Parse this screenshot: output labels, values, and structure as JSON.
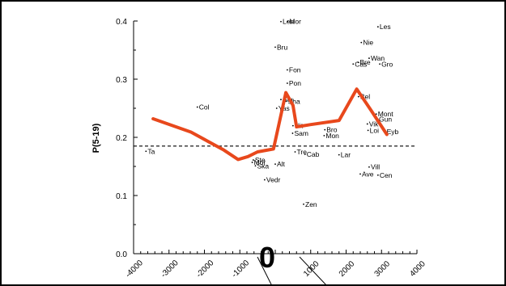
{
  "chart_data": {
    "type": "scatter",
    "title": "",
    "xlabel": "",
    "ylabel": "P(5-19)",
    "xlim": [
      -4000,
      4000
    ],
    "ylim": [
      0.0,
      0.4
    ],
    "x_ticks": [
      "-4000",
      "-3000",
      "-2000",
      "-1000",
      "0",
      "1000",
      "2000",
      "3000",
      "4000"
    ],
    "y_ticks": [
      "0.0",
      "0.1",
      "0.2",
      "0.3",
      "0.4"
    ],
    "zero_label": "0",
    "grid": false,
    "reference_line": {
      "style": "dashed",
      "y": 0.185
    },
    "points": [
      {
        "label": "Ta",
        "x": -3650,
        "y": 0.176
      },
      {
        "label": "Col",
        "x": -2200,
        "y": 0.252
      },
      {
        "label": "Mor",
        "x": -650,
        "y": 0.157
      },
      {
        "label": "Ste",
        "x": -620,
        "y": 0.161
      },
      {
        "label": "Ska",
        "x": -560,
        "y": 0.151
      },
      {
        "label": "Vedr",
        "x": -300,
        "y": 0.127
      },
      {
        "label": "Alt",
        "x": 0,
        "y": 0.154
      },
      {
        "label": "Bru",
        "x": 0,
        "y": 0.355
      },
      {
        "label": "Len",
        "x": 160,
        "y": 0.399
      },
      {
        "label": "Mor",
        "x": 350,
        "y": 0.399
      },
      {
        "label": "Fon",
        "x": 340,
        "y": 0.316
      },
      {
        "label": "Pon",
        "x": 340,
        "y": 0.293
      },
      {
        "label": "Stu",
        "x": 160,
        "y": 0.265
      },
      {
        "label": "Sha",
        "x": 310,
        "y": 0.262
      },
      {
        "label": "Yas",
        "x": 40,
        "y": 0.25
      },
      {
        "label": "Nit",
        "x": 500,
        "y": 0.22
      },
      {
        "label": "Sam",
        "x": 490,
        "y": 0.207
      },
      {
        "label": "Tre",
        "x": 560,
        "y": 0.175
      },
      {
        "label": "Cab",
        "x": 840,
        "y": 0.171
      },
      {
        "label": "Zen",
        "x": 800,
        "y": 0.085
      },
      {
        "label": "Bro",
        "x": 1400,
        "y": 0.213
      },
      {
        "label": "Mon",
        "x": 1380,
        "y": 0.203
      },
      {
        "label": "Lar",
        "x": 1800,
        "y": 0.17
      },
      {
        "label": "Ave",
        "x": 2400,
        "y": 0.137
      },
      {
        "label": "Vill",
        "x": 2650,
        "y": 0.149
      },
      {
        "label": "Cen",
        "x": 2900,
        "y": 0.135
      },
      {
        "label": "Les",
        "x": 2900,
        "y": 0.39
      },
      {
        "label": "Nie",
        "x": 2430,
        "y": 0.363
      },
      {
        "label": "Wan",
        "x": 2650,
        "y": 0.336
      },
      {
        "label": "Cas",
        "x": 2200,
        "y": 0.326
      },
      {
        "label": "Bre",
        "x": 2340,
        "y": 0.329
      },
      {
        "label": "Gro",
        "x": 2950,
        "y": 0.326
      },
      {
        "label": "Bel",
        "x": 2350,
        "y": 0.27
      },
      {
        "label": "Mont",
        "x": 2850,
        "y": 0.24
      },
      {
        "label": "Gun",
        "x": 2880,
        "y": 0.231
      },
      {
        "label": "Vik",
        "x": 2600,
        "y": 0.223
      },
      {
        "label": "Loi",
        "x": 2620,
        "y": 0.212
      },
      {
        "label": "Eyb",
        "x": 3100,
        "y": 0.21
      }
    ],
    "series": [
      {
        "style": "line",
        "color": "#e8481c",
        "x": [
          -3450,
          -2380,
          -1450,
          -1050,
          -770,
          -500,
          -50,
          300,
          500,
          600,
          1000,
          1800,
          2300,
          2700,
          3150
        ],
        "y": [
          0.232,
          0.209,
          0.178,
          0.162,
          0.167,
          0.175,
          0.18,
          0.277,
          0.255,
          0.218,
          0.222,
          0.229,
          0.283,
          0.247,
          0.205
        ]
      }
    ]
  },
  "colors": {
    "line": "#e8481c",
    "axis": "#000000",
    "text": "#000000",
    "border": "#000000"
  }
}
